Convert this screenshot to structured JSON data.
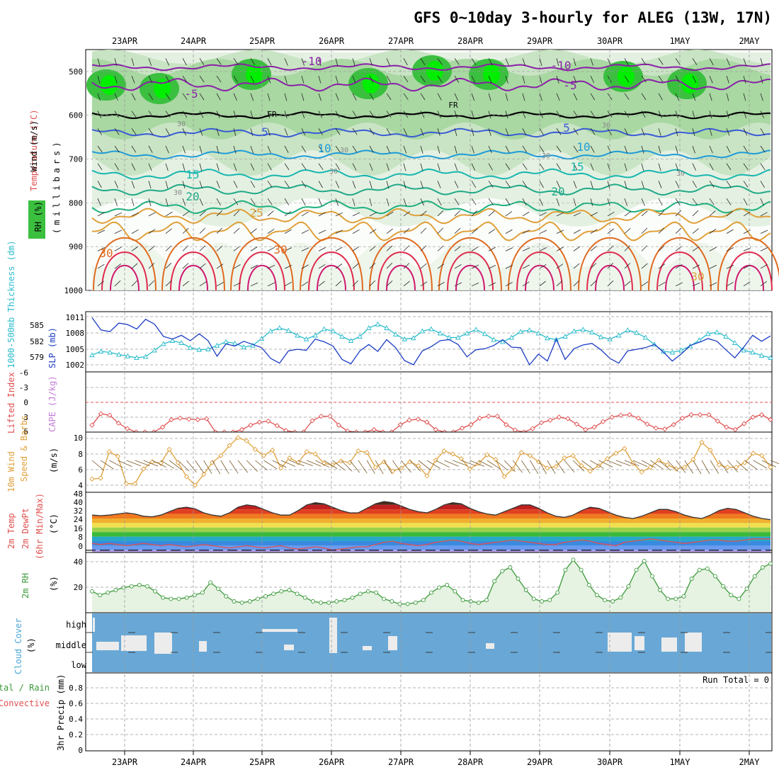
{
  "title": "GFS 0~10day 3-hourly for ALEG (13W, 17N)",
  "dates": [
    "23APR",
    "24APR",
    "25APR",
    "26APR",
    "27APR",
    "28APR",
    "29APR",
    "30APR",
    "1MAY",
    "2MAY"
  ],
  "colors": {
    "frame": "#000000",
    "grid": "#9a9a9a",
    "rh_light": "#e4f1e2",
    "rh_mid": "#a9d8a2",
    "rh_high": "#3bbf3f",
    "rh_max": "#00ee00",
    "temp_cold": "#8b1fa8",
    "temp_cool": "#3a5bd6",
    "temp_mild": "#1e9bd8",
    "temp_warm": "#17b6b0",
    "temp_hot": "#e0a03a",
    "temp_vhot": "#e06a1e",
    "temp_xhot": "#e02a4a",
    "freeze": "#000000",
    "slp": "#1c3cc4",
    "thick": "#2cbccc",
    "li": "#e05050",
    "cape": "#c37bd8",
    "wind": "#e0a03a",
    "rh2m": "#3a9a3a",
    "cloud": "#69a8d6",
    "cloud_gap": "#ececec"
  },
  "panels": {
    "upper": {
      "ylabel_wind": "Wind (m/s)",
      "ylabel_temp": "Temperature (°C)",
      "ylabel_rh": "RH (%)",
      "ylabel_units": "(millibars)",
      "ticks": [
        "500",
        "600",
        "700",
        "800",
        "900",
        "1000"
      ],
      "isotherm_labels": [
        "-10",
        "-5",
        "FR",
        "5",
        "10",
        "15",
        "20",
        "25",
        "30",
        "-10",
        "-5",
        "FR",
        "5",
        "10",
        "15",
        "20",
        "30",
        "30"
      ],
      "rh_labels": [
        "30",
        "30",
        "30",
        "30",
        "30",
        "30",
        "30"
      ]
    },
    "slp": {
      "ylabel_thick": "1000-500mb Thickness (dm)",
      "ylabel_slp": "SLP (mb)",
      "left_ticks": [
        "585",
        "582",
        "579"
      ],
      "right_ticks": [
        "1011",
        "1008",
        "1005",
        "1002"
      ]
    },
    "li": {
      "ylabel_li": "Lifted Index",
      "ylabel_cape": "CAPE (J/kg)",
      "ticks": [
        "-6",
        "-3",
        "0",
        "3",
        "6"
      ]
    },
    "wind": {
      "ylabel_a": "10m Wind",
      "ylabel_b": "Speed & Barbs",
      "ylabel_units": "(m/s)",
      "ticks": [
        "10",
        "8",
        "6",
        "4"
      ]
    },
    "temp2m": {
      "ylabel_a": "2m Temp",
      "ylabel_b": "2m DewPt",
      "ylabel_c": "(6hr Min/Max)",
      "ylabel_units": "(°C)",
      "ticks": [
        "48",
        "40",
        "32",
        "24",
        "16",
        "8",
        "0"
      ]
    },
    "rh2m": {
      "ylabel": "2m RH",
      "ylabel_units": "(%)",
      "ticks": [
        "40",
        "20"
      ]
    },
    "cloud": {
      "ylabel": "Cloud Cover",
      "ylabel_units": "(%)",
      "ticks": [
        "high",
        "middle",
        "low"
      ]
    },
    "precip": {
      "ylabel_a": "Total / Rain",
      "ylabel_b": "Convective",
      "ylabel_c": "3hr Precip (mm)",
      "ticks": [
        "0.8",
        "0.6",
        "0.4",
        "0.2",
        "0"
      ],
      "run_total": "Run Total = 0"
    }
  },
  "chart_data": [
    {
      "type": "line",
      "title": "1000-500mb Thickness (dm) and SLP (mb)",
      "x_desc": "3-hourly steps from 23APR 00Z to 2MAY 06Z",
      "series": [
        {
          "name": "SLP (mb)",
          "axis": "right",
          "values": [
            1010.8,
            1008.5,
            1008.2,
            1009.8,
            1009.5,
            1008.7,
            1010.5,
            1009.6,
            1007.3,
            1006.8,
            1007.5,
            1006.5,
            1007.8,
            1006.5,
            1003.6,
            1005.9,
            1005.5,
            1006.4,
            1005.8,
            1005.2,
            1003.2,
            1002.3,
            1004.6,
            1004.9,
            1004.7,
            1006.8,
            1006.3,
            1005.5,
            1003.0,
            1002.2,
            1004.6,
            1005.8,
            1004.5,
            1006.7,
            1005.2,
            1002.8,
            1002.0,
            1004.6,
            1005.4,
            1006.5,
            1006.7,
            1005.8,
            1003.5,
            1004.8,
            1005.0,
            1005.6,
            1006.7,
            1005.3,
            1005.2,
            1002.0,
            1004.0,
            1002.7,
            1006.8,
            1003.0,
            1005.0,
            1005.7,
            1006.0,
            1004.8,
            1003.2,
            1002.3,
            1004.6,
            1004.9,
            1005.2,
            1005.8,
            1004.4,
            1002.7,
            1004.0,
            1005.6,
            1006.2,
            1006.9,
            1006.4,
            1004.8,
            1003.3,
            1005.3,
            1007.5,
            1006.4,
            1007.4
          ]
        },
        {
          "name": "1000-500mb Thickness (dm)",
          "axis": "left",
          "values": [
            579.5,
            580.2,
            580.0,
            579.6,
            579.3,
            579.0,
            579.2,
            580.4,
            581.6,
            582.2,
            581.8,
            580.9,
            580.5,
            580.6,
            581.3,
            582.0,
            581.7,
            581.0,
            581.3,
            582.6,
            584.0,
            584.6,
            584.1,
            583.2,
            582.5,
            583.2,
            584.4,
            584.0,
            583.0,
            582.2,
            583.0,
            584.6,
            585.3,
            584.6,
            583.4,
            582.5,
            582.7,
            584.0,
            584.4,
            583.6,
            582.8,
            582.8,
            583.6,
            584.3,
            583.5,
            582.4,
            582.0,
            582.8,
            583.9,
            584.2,
            583.6,
            582.7,
            582.4,
            583.0,
            584.0,
            584.3,
            583.8,
            582.9,
            582.5,
            583.2,
            584.2,
            583.7,
            582.8,
            581.5,
            580.2,
            580.0,
            580.4,
            581.2,
            582.3,
            583.5,
            583.8,
            583.0,
            581.8,
            580.4,
            580.0,
            579.4,
            579.0
          ]
        }
      ],
      "ylim_left": [
        578,
        586
      ],
      "ylim_right": [
        1001,
        1012
      ]
    },
    {
      "type": "line",
      "title": "Lifted Index",
      "series": [
        {
          "name": "Lifted Index",
          "values": [
            4.6,
            2.3,
            2.6,
            4.2,
            5.3,
            6.0,
            6.5,
            6.5,
            5.0,
            3.5,
            3.2,
            3.4,
            3.5,
            3.3,
            6.0,
            6.5,
            6.5,
            5.5,
            4.6,
            4.0,
            3.8,
            4.7,
            5.7,
            6.5,
            6.2,
            3.7,
            2.8,
            2.8,
            4.6,
            5.8,
            6.5,
            6.2,
            5.5,
            6.5,
            6.0,
            4.5,
            3.6,
            3.4,
            4.0,
            5.5,
            6.2,
            6.0,
            5.2,
            4.5,
            3.2,
            2.8,
            2.8,
            4.5,
            5.6,
            6.0,
            5.3,
            4.1,
            3.6,
            3.0,
            3.3,
            4.4,
            5.5,
            5.0,
            3.9,
            3.0,
            2.6,
            2.5,
            3.2,
            4.4,
            5.2,
            5.4,
            4.5,
            3.2,
            2.5,
            2.5,
            2.5,
            3.8,
            5.0,
            5.5,
            4.3,
            3.0,
            2.5,
            3.5
          ]
        }
      ],
      "ylim": [
        -6,
        6
      ],
      "reference_line": 0
    },
    {
      "type": "line",
      "title": "10m Wind Speed (m/s)",
      "series": [
        {
          "name": "Wind Speed",
          "values": [
            4.8,
            4.9,
            8.3,
            7.7,
            4.2,
            4.2,
            6.1,
            7.0,
            6.8,
            8.6,
            6.9,
            5.1,
            4.0,
            5.4,
            6.9,
            7.8,
            9.1,
            10.1,
            9.7,
            8.6,
            7.8,
            8.5,
            6.2,
            7.5,
            6.9,
            8.3,
            8.0,
            6.8,
            6.6,
            7.1,
            6.9,
            8.4,
            8.2,
            6.3,
            7.0,
            5.8,
            6.2,
            7.0,
            6.5,
            5.2,
            7.2,
            8.4,
            8.0,
            7.4,
            6.1,
            6.8,
            7.9,
            7.3,
            5.1,
            6.1,
            8.2,
            7.8,
            7.0,
            6.2,
            6.4,
            7.5,
            7.8,
            6.5,
            5.8,
            6.5,
            7.4,
            8.1,
            8.7,
            6.8,
            5.7,
            6.3,
            7.2,
            6.6,
            6.1,
            6.3,
            7.3,
            9.5,
            8.5,
            6.6,
            6.3,
            6.3,
            6.9,
            8.1,
            7.8,
            6.3
          ]
        }
      ],
      "ylim": [
        3.5,
        10.5
      ]
    },
    {
      "type": "area",
      "title": "2m Temp / 2m DewPt (°C)",
      "series": [
        {
          "name": "2m Temp",
          "values": [
            31,
            30.5,
            31,
            32,
            33,
            32,
            30,
            29.5,
            31,
            34,
            37,
            38,
            36.5,
            33,
            31,
            30,
            33,
            38,
            40,
            39,
            36,
            33,
            31,
            31,
            35,
            40,
            42,
            41,
            38,
            35,
            33,
            33,
            37,
            41,
            43,
            42,
            39,
            36,
            34,
            33,
            36,
            40,
            42,
            41,
            37,
            34,
            32,
            31,
            34,
            37,
            40,
            40,
            37,
            33,
            30,
            29,
            31,
            35,
            38,
            37,
            34,
            31,
            29,
            28,
            30,
            33,
            36,
            36,
            34,
            31,
            29,
            28,
            31,
            35,
            37,
            36,
            33,
            30,
            28,
            27
          ]
        },
        {
          "name": "2m DewPt",
          "values": [
            6,
            5,
            6,
            5,
            4,
            5,
            6,
            5,
            4,
            5,
            4,
            3,
            4,
            5,
            4,
            3,
            2,
            3,
            4,
            3,
            2,
            3,
            4,
            2,
            1,
            2,
            3,
            2,
            0,
            1,
            2,
            3,
            3,
            5,
            7,
            8,
            6,
            5,
            4,
            5,
            7,
            8,
            9,
            8,
            6,
            5,
            6,
            7,
            8,
            9,
            8,
            7,
            6,
            5,
            5,
            7,
            8,
            9,
            8,
            6,
            5,
            4,
            7,
            8,
            9,
            10,
            9,
            8,
            7,
            6,
            7,
            8,
            9,
            9,
            8,
            8,
            9,
            10,
            10,
            10
          ]
        }
      ],
      "ylim": [
        -2,
        48
      ]
    },
    {
      "type": "line",
      "title": "2m RH (%)",
      "series": [
        {
          "name": "2m RH",
          "values": [
            17,
            14,
            16,
            18,
            20,
            21,
            22,
            21,
            17,
            12,
            11,
            11,
            12,
            14,
            16,
            24,
            19,
            13,
            9,
            8,
            9,
            11,
            13,
            15,
            17,
            18,
            15,
            12,
            9,
            8,
            8,
            9,
            10,
            12,
            15,
            17,
            16,
            11,
            9,
            7,
            7,
            8,
            10,
            16,
            20,
            22,
            17,
            10,
            9,
            8,
            10,
            25,
            33,
            36,
            27,
            18,
            11,
            9,
            10,
            16,
            34,
            42,
            34,
            22,
            14,
            10,
            9,
            12,
            21,
            34,
            41,
            29,
            18,
            11,
            11,
            13,
            27,
            34,
            35,
            29,
            21,
            14,
            11,
            19,
            29,
            36,
            39
          ]
        }
      ],
      "ylim": [
        0,
        45
      ]
    }
  ]
}
